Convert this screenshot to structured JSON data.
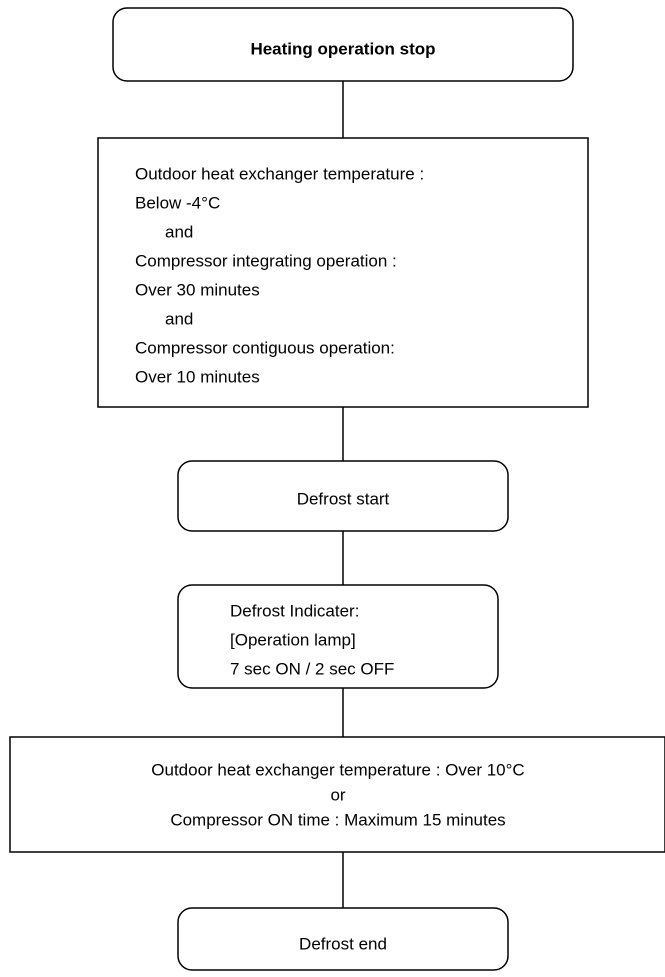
{
  "nodes": [
    {
      "lines": [
        "Heating operation stop"
      ]
    },
    {
      "lines": [
        "Outdoor heat exchanger temperature :",
        "Below -4°C",
        "and",
        "Compressor integrating operation :",
        "Over 30 minutes",
        "and",
        "Compressor contiguous operation:",
        "Over 10 minutes"
      ]
    },
    {
      "lines": [
        "Defrost start"
      ]
    },
    {
      "lines": [
        "Defrost Indicater:",
        "[Operation lamp]",
        "7 sec ON / 2 sec OFF"
      ]
    },
    {
      "lines": [
        "Outdoor heat exchanger temperature : Over 10°C",
        "or",
        "Compressor ON time : Maximum 15 minutes"
      ]
    },
    {
      "lines": [
        "Defrost end"
      ]
    }
  ]
}
